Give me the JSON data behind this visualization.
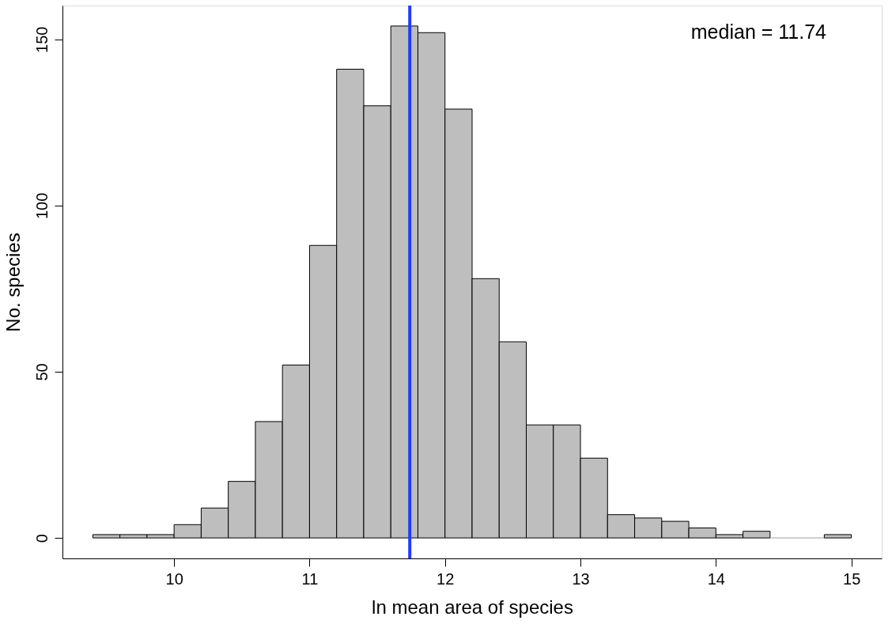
{
  "chart_data": {
    "type": "histogram",
    "bins": [
      9.4,
      9.6,
      9.8,
      10.0,
      10.2,
      10.4,
      10.6,
      10.8,
      11.0,
      11.2,
      11.4,
      11.6,
      11.8,
      12.0,
      12.2,
      12.4,
      12.6,
      12.8,
      13.0,
      13.2,
      13.4,
      13.6,
      13.8,
      14.0,
      14.2,
      14.4,
      14.6,
      14.8,
      15.0
    ],
    "values": [
      1,
      1,
      1,
      4,
      9,
      17,
      35,
      52,
      88,
      141,
      130,
      154,
      152,
      129,
      78,
      59,
      34,
      34,
      24,
      7,
      6,
      5,
      3,
      1,
      2,
      0,
      0,
      1
    ],
    "color": "#bebebe",
    "xlabel": "ln mean area of species",
    "ylabel": "No. species",
    "xlim": [
      9.176,
      15.224
    ],
    "ylim": [
      -6.16,
      160.16
    ],
    "xticks": [
      10,
      11,
      12,
      13,
      14,
      15
    ],
    "yticks": [
      0,
      50,
      100,
      150
    ],
    "ref_lines": [
      {
        "axis": "x",
        "value": 11.74,
        "color": "#1f3cff",
        "line_style": "solid"
      }
    ],
    "annotations": [
      "median = 11.74"
    ],
    "grid": false
  }
}
